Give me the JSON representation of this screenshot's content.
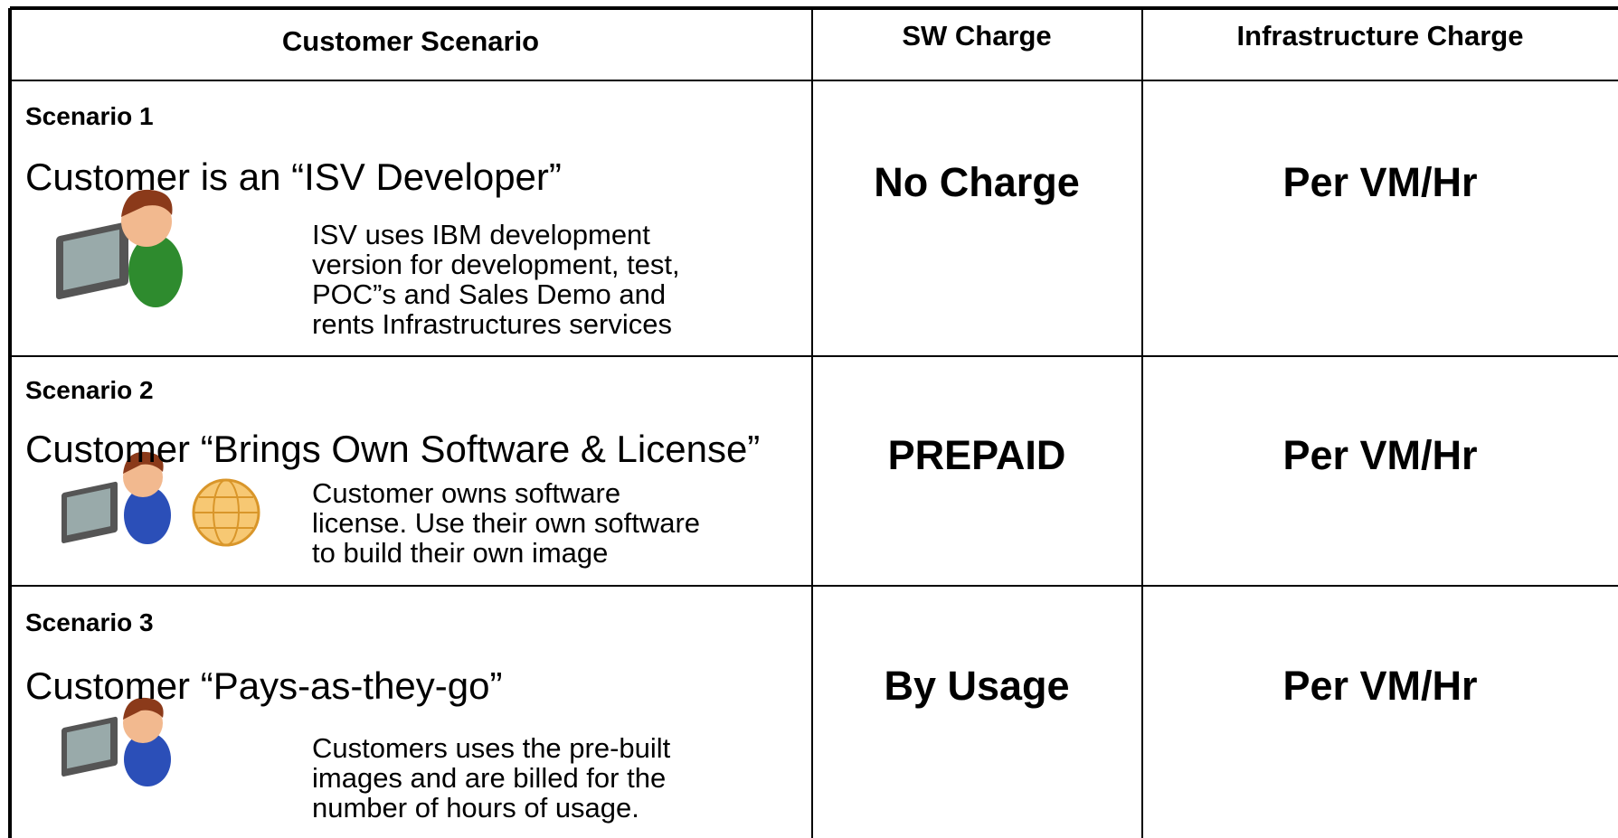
{
  "table": {
    "header": [
      "Customer Scenario",
      "SW Charge",
      "Infrastructure Charge"
    ],
    "rows": [
      {
        "label": "Scenario 1",
        "title": "Customer is an “ISV Developer”",
        "description": [
          "ISV uses IBM development",
          "version for development, test,",
          "POC”s and Sales Demo and",
          "rents Infrastructures services"
        ],
        "sw_charge": "No Charge",
        "infrastructure_charge": "Per VM/Hr"
      },
      {
        "label": "Scenario 2",
        "title": "Customer “Brings Own Software & License”",
        "description": [
          "Customer owns software",
          "license. Use their own software",
          "to build their own image"
        ],
        "sw_charge": "PREPAID",
        "infrastructure_charge": "Per VM/Hr"
      },
      {
        "label": "Scenario 3",
        "title": "Customer “Pays-as-they-go”",
        "description": [
          "Customers uses the pre-built",
          "images and are billed for the",
          "number of hours of usage."
        ],
        "sw_charge": "By Usage",
        "infrastructure_charge": "Per VM/Hr"
      }
    ]
  }
}
